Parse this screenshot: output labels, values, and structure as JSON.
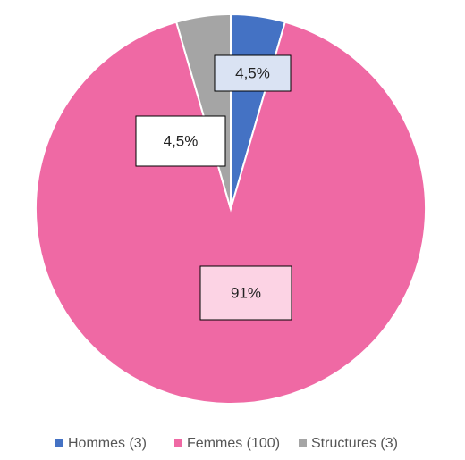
{
  "chart_data": {
    "type": "pie",
    "categories": [
      "Hommes (3)",
      "Femmes (100)",
      "Structures (3)"
    ],
    "values": [
      4.5,
      91,
      4.5
    ],
    "value_labels": [
      "4,5%",
      "91%",
      "4,5%"
    ],
    "colors": [
      "#4472c4",
      "#ef69a4",
      "#a5a5a5"
    ],
    "label_fills": [
      "#dae3f3",
      "#fcd3e4",
      "#ffffff"
    ],
    "legend": "bottom"
  }
}
